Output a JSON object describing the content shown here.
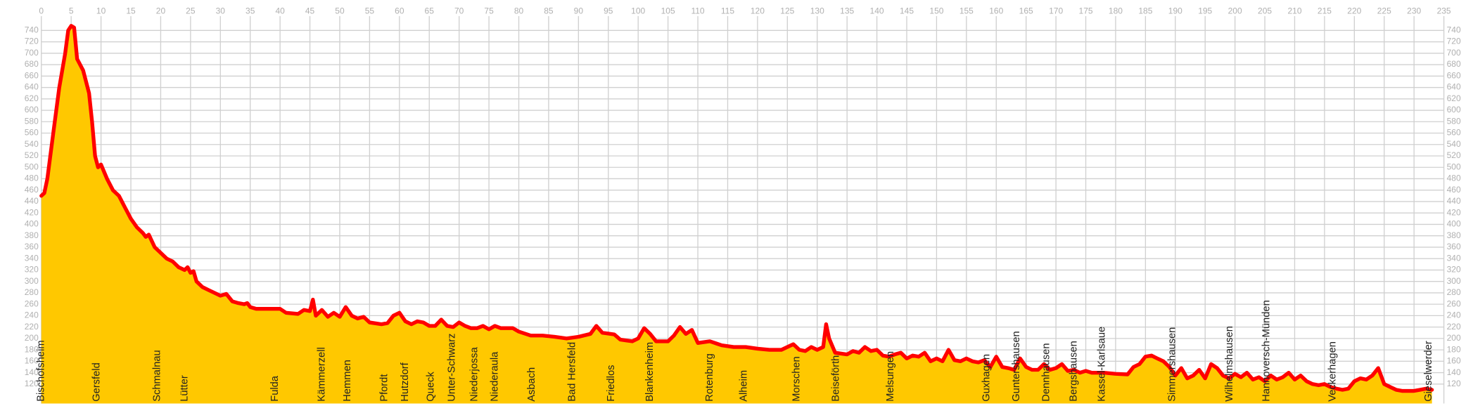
{
  "chart_data": {
    "type": "area",
    "xlim": [
      0,
      235
    ],
    "ylim": [
      86,
      752
    ],
    "xticks": [
      0,
      5,
      10,
      15,
      20,
      25,
      30,
      35,
      40,
      45,
      50,
      55,
      60,
      65,
      70,
      75,
      80,
      85,
      90,
      95,
      100,
      105,
      110,
      115,
      120,
      125,
      130,
      135,
      140,
      145,
      150,
      155,
      160,
      165,
      170,
      175,
      180,
      185,
      190,
      195,
      200,
      205,
      210,
      215,
      220,
      225,
      230,
      235
    ],
    "yticks": [
      120,
      140,
      160,
      180,
      200,
      220,
      240,
      260,
      280,
      300,
      320,
      340,
      360,
      380,
      400,
      420,
      440,
      460,
      480,
      500,
      520,
      540,
      560,
      580,
      600,
      620,
      640,
      660,
      680,
      700,
      720,
      740
    ],
    "grid": true,
    "fill_color": "#ffc800",
    "line_color": "#ff0000",
    "x": [
      0,
      0.5,
      1,
      2,
      3,
      4,
      4.5,
      5,
      5.5,
      6,
      7,
      8,
      8.5,
      9,
      9.5,
      10,
      11,
      12,
      13,
      14,
      15,
      16,
      17,
      17.5,
      18,
      19,
      20,
      21,
      22,
      23,
      24,
      24.5,
      25,
      25.5,
      26,
      27,
      28,
      29,
      30,
      31,
      32,
      33,
      34,
      34.5,
      35,
      36,
      38,
      40,
      41,
      43,
      44,
      45,
      45.5,
      46,
      47,
      48,
      49,
      50,
      51,
      52,
      53,
      54,
      55,
      57,
      58,
      59,
      60,
      61,
      62,
      63,
      64,
      65,
      66,
      67,
      68,
      69,
      70,
      71,
      72,
      73,
      74,
      75,
      76,
      77,
      79,
      80,
      82,
      84,
      86,
      88,
      90,
      92,
      93,
      94,
      96,
      97,
      99,
      100,
      101,
      102,
      103,
      105,
      106,
      107,
      108,
      109,
      110,
      112,
      114,
      116,
      118,
      120,
      122,
      124,
      125,
      126,
      127,
      128,
      129,
      130,
      131,
      131.5,
      132,
      133,
      135,
      136,
      137,
      138,
      139,
      140,
      141,
      142,
      143,
      144,
      145,
      146,
      147,
      148,
      149,
      150,
      151,
      152,
      153,
      154,
      155,
      156,
      157,
      158,
      159,
      160,
      161,
      162,
      163,
      164,
      165,
      166,
      167,
      168,
      169,
      170,
      171,
      172,
      173,
      174,
      175,
      176,
      178,
      180,
      182,
      183,
      184,
      185,
      186,
      187,
      188,
      189,
      190,
      191,
      192,
      193,
      194,
      195,
      196,
      197,
      198,
      199,
      200,
      201,
      202,
      203,
      204,
      205,
      206,
      207,
      208,
      209,
      210,
      211,
      212,
      213,
      214,
      215,
      216,
      217,
      218,
      219,
      220,
      221,
      222,
      223,
      224,
      225,
      226,
      227,
      228,
      229,
      230,
      231,
      232,
      233
    ],
    "values": [
      450,
      455,
      480,
      560,
      640,
      700,
      740,
      748,
      745,
      690,
      670,
      630,
      580,
      520,
      500,
      505,
      480,
      460,
      450,
      430,
      410,
      395,
      385,
      378,
      382,
      360,
      350,
      340,
      335,
      325,
      320,
      325,
      315,
      318,
      300,
      290,
      285,
      280,
      275,
      278,
      265,
      262,
      260,
      262,
      255,
      252,
      252,
      252,
      245,
      243,
      250,
      248,
      268,
      240,
      250,
      238,
      245,
      238,
      255,
      240,
      235,
      238,
      228,
      225,
      227,
      240,
      245,
      230,
      225,
      230,
      228,
      222,
      222,
      233,
      222,
      220,
      228,
      222,
      218,
      218,
      222,
      216,
      222,
      218,
      218,
      212,
      205,
      205,
      203,
      200,
      203,
      208,
      222,
      210,
      207,
      198,
      195,
      200,
      218,
      208,
      195,
      195,
      205,
      220,
      208,
      215,
      192,
      195,
      188,
      185,
      185,
      182,
      180,
      180,
      185,
      190,
      180,
      178,
      185,
      180,
      185,
      225,
      200,
      175,
      172,
      178,
      175,
      185,
      178,
      180,
      170,
      168,
      172,
      175,
      165,
      170,
      168,
      175,
      160,
      165,
      160,
      180,
      162,
      160,
      165,
      160,
      158,
      162,
      150,
      168,
      150,
      148,
      145,
      165,
      150,
      145,
      145,
      155,
      145,
      148,
      155,
      143,
      145,
      140,
      143,
      140,
      140,
      138,
      137,
      150,
      155,
      168,
      170,
      165,
      160,
      150,
      135,
      148,
      130,
      135,
      145,
      130,
      155,
      148,
      135,
      130,
      138,
      132,
      140,
      128,
      132,
      125,
      135,
      128,
      132,
      140,
      128,
      135,
      125,
      120,
      118,
      120,
      115,
      112,
      110,
      112,
      125,
      130,
      128,
      135,
      148,
      120,
      115,
      110,
      108,
      108,
      108,
      110,
      112,
      110
    ],
    "places": [
      {
        "name": "Bischofsheim",
        "x": 0
      },
      {
        "name": "Gersfeld",
        "x": 9.3
      },
      {
        "name": "Schmalnau",
        "x": 19.4
      },
      {
        "name": "Lütter",
        "x": 24
      },
      {
        "name": "Fulda",
        "x": 39.2
      },
      {
        "name": "Kämmerzell",
        "x": 47
      },
      {
        "name": "Hemmen",
        "x": 51.3
      },
      {
        "name": "Pfordt",
        "x": 57.5
      },
      {
        "name": "Hutzdorf",
        "x": 61
      },
      {
        "name": "Queck",
        "x": 65.3
      },
      {
        "name": "Unter-Schwarz",
        "x": 68.8
      },
      {
        "name": "Niederjossa",
        "x": 72.6
      },
      {
        "name": "Niederaula",
        "x": 76
      },
      {
        "name": "Asbach",
        "x": 82.2
      },
      {
        "name": "Bad Hersfeld",
        "x": 89
      },
      {
        "name": "Friedlos",
        "x": 95.5
      },
      {
        "name": "Blankenheim",
        "x": 102
      },
      {
        "name": "Rotenburg",
        "x": 112
      },
      {
        "name": "Alheim",
        "x": 117.7
      },
      {
        "name": "Morschen",
        "x": 126.6
      },
      {
        "name": "Beiseförth",
        "x": 133.2
      },
      {
        "name": "Melsungen",
        "x": 142.3
      },
      {
        "name": "Guxhagen",
        "x": 158.4
      },
      {
        "name": "Guntershausen",
        "x": 163.4
      },
      {
        "name": "Dennhausen",
        "x": 168.4
      },
      {
        "name": "Bergshausen",
        "x": 173
      },
      {
        "name": "Kassel-Karlsaue",
        "x": 177.7
      },
      {
        "name": "Simmershausen",
        "x": 189.5
      },
      {
        "name": "Wilhelmshausen",
        "x": 199.1
      },
      {
        "name": "Hannoversch-Münden",
        "x": 205.3
      },
      {
        "name": "Veckerhagen",
        "x": 216.4
      },
      {
        "name": "Gieselwerder",
        "x": 232.5
      }
    ]
  }
}
